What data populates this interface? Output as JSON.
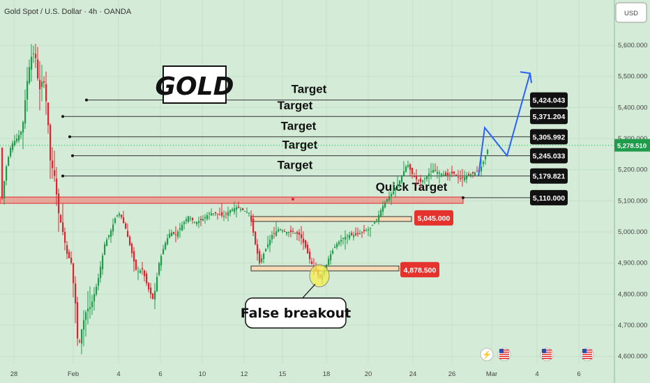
{
  "header": {
    "symbol_title": "Gold Spot / U.S. Dollar · 4h · OANDA",
    "currency_button": "USD"
  },
  "brand_label": "GOLD",
  "callout_label": "False breakout",
  "colors": {
    "bg": "#d3ebd7",
    "up": "#1e9c4a",
    "down": "#e0242f",
    "accent": "#2962ff",
    "label_bg": "#111111",
    "red_label": "#e5322d",
    "zone": "#f08a80"
  },
  "event_icons": [
    "flash-icon",
    "us-flag-icon",
    "us-flag-icon",
    "us-flag-icon"
  ],
  "chart_data": {
    "type": "candlestick",
    "title": "Gold Spot / U.S. Dollar · 4h · OANDA",
    "ylim": [
      4585,
      5740
    ],
    "yticks": [
      "5,600.000",
      "5,500.000",
      "5,400.000",
      "5,300.000",
      "5,200.000",
      "5,100.000",
      "5,000.000",
      "4,900.000",
      "4,800.000",
      "4,700.000",
      "4,600.000"
    ],
    "xticks": [
      "28",
      "Feb",
      "4",
      "6",
      "10",
      "12",
      "15",
      "18",
      "20",
      "24",
      "26",
      "Mar",
      "4",
      "6"
    ],
    "last_price": "5,278.510",
    "price_levels": [
      {
        "label": "5,424.043",
        "value": 5424.043,
        "style": "dark",
        "text": "Target"
      },
      {
        "label": "5,371.204",
        "value": 5371.204,
        "style": "dark",
        "text": "Target"
      },
      {
        "label": "5,305.992",
        "value": 5305.992,
        "style": "dark",
        "text": "Target"
      },
      {
        "label": "5,245.033",
        "value": 5245.033,
        "style": "dark",
        "text": "Target"
      },
      {
        "label": "5,179.821",
        "value": 5179.821,
        "style": "dark",
        "text": "Target"
      },
      {
        "label": "5,110.000",
        "value": 5110.0,
        "style": "dark",
        "text": "Quick Target"
      },
      {
        "label": "5,045.000",
        "value": 5045.0,
        "style": "red",
        "text": ""
      },
      {
        "label": "4,878.500",
        "value": 4878.5,
        "style": "red",
        "text": ""
      }
    ],
    "projection": [
      5180,
      5335,
      5245,
      5510
    ]
  }
}
